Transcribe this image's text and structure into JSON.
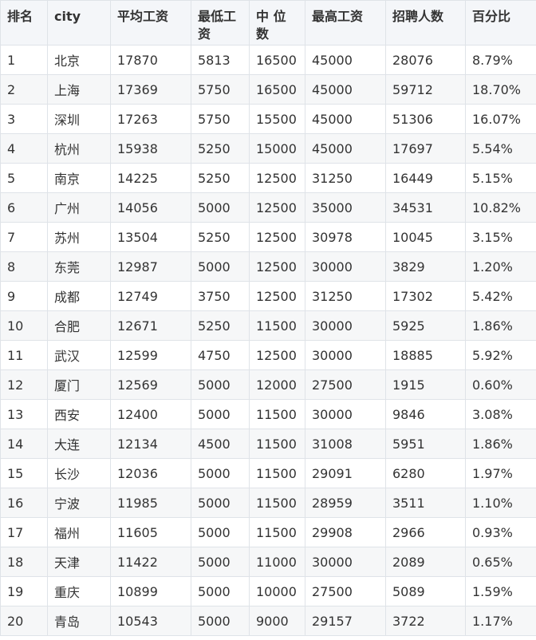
{
  "table": {
    "headers": [
      "排名",
      "city",
      "平均工资",
      "最低工资",
      "中 位数",
      "最高工资",
      "招聘人数",
      "百分比"
    ],
    "rows": [
      [
        "1",
        "北京",
        "17870",
        "5813",
        "16500",
        "45000",
        "28076",
        "8.79%"
      ],
      [
        "2",
        "上海",
        "17369",
        "5750",
        "16500",
        "45000",
        "59712",
        "18.70%"
      ],
      [
        "3",
        "深圳",
        "17263",
        "5750",
        "15500",
        "45000",
        "51306",
        "16.07%"
      ],
      [
        "4",
        "杭州",
        "15938",
        "5250",
        "15000",
        "45000",
        "17697",
        "5.54%"
      ],
      [
        "5",
        "南京",
        "14225",
        "5250",
        "12500",
        "31250",
        "16449",
        "5.15%"
      ],
      [
        "6",
        "广州",
        "14056",
        "5000",
        "12500",
        "35000",
        "34531",
        "10.82%"
      ],
      [
        "7",
        "苏州",
        "13504",
        "5250",
        "12500",
        "30978",
        "10045",
        "3.15%"
      ],
      [
        "8",
        "东莞",
        "12987",
        "5000",
        "12500",
        "30000",
        "3829",
        "1.20%"
      ],
      [
        "9",
        "成都",
        "12749",
        "3750",
        "12500",
        "31250",
        "17302",
        "5.42%"
      ],
      [
        "10",
        "合肥",
        "12671",
        "5250",
        "11500",
        "30000",
        "5925",
        "1.86%"
      ],
      [
        "11",
        "武汉",
        "12599",
        "4750",
        "12500",
        "30000",
        "18885",
        "5.92%"
      ],
      [
        "12",
        "厦门",
        "12569",
        "5000",
        "12000",
        "27500",
        "1915",
        "0.60%"
      ],
      [
        "13",
        "西安",
        "12400",
        "5000",
        "11500",
        "30000",
        "9846",
        "3.08%"
      ],
      [
        "14",
        "大连",
        "12134",
        "4500",
        "11500",
        "31008",
        "5951",
        "1.86%"
      ],
      [
        "15",
        "长沙",
        "12036",
        "5000",
        "11500",
        "29091",
        "6280",
        "1.97%"
      ],
      [
        "16",
        "宁波",
        "11985",
        "5000",
        "11500",
        "28959",
        "3511",
        "1.10%"
      ],
      [
        "17",
        "福州",
        "11605",
        "5000",
        "11500",
        "29908",
        "2966",
        "0.93%"
      ],
      [
        "18",
        "天津",
        "11422",
        "5000",
        "11000",
        "30000",
        "2089",
        "0.65%"
      ],
      [
        "19",
        "重庆",
        "10899",
        "5000",
        "10000",
        "27500",
        "5089",
        "1.59%"
      ],
      [
        "20",
        "青岛",
        "10543",
        "5000",
        "9000",
        "29157",
        "3722",
        "1.17%"
      ]
    ]
  }
}
